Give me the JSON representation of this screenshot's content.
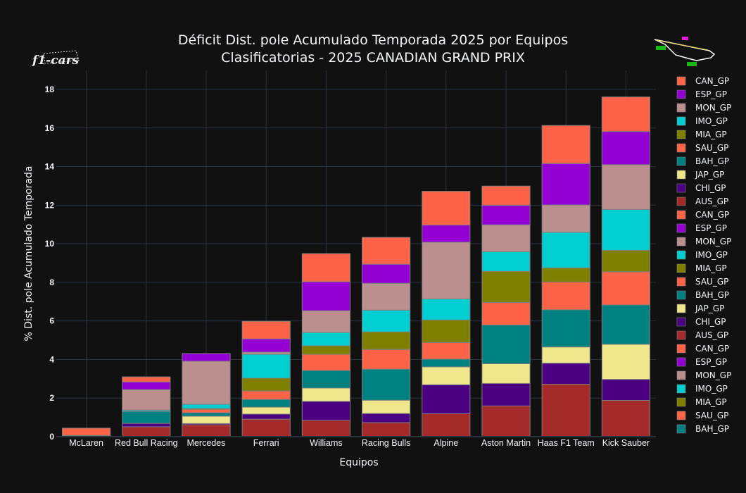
{
  "chart_data": {
    "type": "bar",
    "stacked": true,
    "title": "Déficit Dist. pole Acumulado Temporada 2025 por Equipos",
    "subtitle": "Clasificatorias - 2025 CANADIAN GRAND PRIX",
    "xlabel": "Equipos",
    "ylabel": "% Dist. pole Acumulado Temporada",
    "ylim": [
      0,
      19
    ],
    "yticks": [
      0,
      2,
      4,
      6,
      8,
      10,
      12,
      14,
      16,
      18
    ],
    "grid": true,
    "legend_position": "right",
    "categories": [
      "McLaren",
      "Red Bull Racing",
      "Mercedes",
      "Ferrari",
      "Williams",
      "Racing Bulls",
      "Alpine",
      "Aston Martin",
      "Haas F1 Team",
      "Kick Sauber"
    ],
    "series": [
      {
        "name": "AUS_GP",
        "color": "#a52a2a",
        "values": [
          0.0,
          0.51,
          0.62,
          0.91,
          0.84,
          0.73,
          1.19,
          1.59,
          2.72,
          1.88
        ]
      },
      {
        "name": "CHI_GP",
        "color": "#4b0082",
        "values": [
          0.0,
          0.18,
          0.06,
          0.26,
          0.99,
          0.47,
          1.5,
          1.17,
          1.09,
          1.09
        ]
      },
      {
        "name": "JAP_GP",
        "color": "#f0e68c",
        "values": [
          0.0,
          0.0,
          0.38,
          0.36,
          0.69,
          0.69,
          0.93,
          1.02,
          0.84,
          1.82
        ]
      },
      {
        "name": "BAH_GP",
        "color": "#008080",
        "values": [
          0.0,
          0.62,
          0.18,
          0.4,
          0.91,
          1.61,
          0.4,
          2.01,
          1.93,
          2.04
        ]
      },
      {
        "name": "SAU_GP",
        "color": "#ff6347",
        "values": [
          0.0,
          0.0,
          0.18,
          0.44,
          0.84,
          1.02,
          0.86,
          1.17,
          1.44,
          1.72
        ]
      },
      {
        "name": "MIA_GP",
        "color": "#808000",
        "values": [
          0.06,
          0.0,
          0.04,
          0.66,
          0.44,
          0.91,
          1.17,
          1.61,
          0.73,
          1.11
        ]
      },
      {
        "name": "IMO_GP",
        "color": "#00ced1",
        "values": [
          0.0,
          0.07,
          0.22,
          1.24,
          0.69,
          1.13,
          1.09,
          1.02,
          1.84,
          2.12
        ]
      },
      {
        "name": "MON_GP",
        "color": "#bc8f8f",
        "values": [
          0.0,
          1.06,
          2.23,
          0.11,
          1.13,
          1.39,
          2.94,
          1.39,
          1.42,
          2.32
        ]
      },
      {
        "name": "ESP_GP",
        "color": "#9400d3",
        "values": [
          0.0,
          0.4,
          0.4,
          0.69,
          1.5,
          0.99,
          0.89,
          1.02,
          2.15,
          1.72
        ]
      },
      {
        "name": "CAN_GP",
        "color": "#ff6347",
        "values": [
          0.38,
          0.26,
          0.0,
          0.91,
          1.46,
          1.39,
          1.75,
          0.99,
          1.97,
          1.79
        ]
      }
    ],
    "legend_entries": [
      {
        "label": "CAN_GP",
        "color": "#ff6347"
      },
      {
        "label": "ESP_GP",
        "color": "#9400d3"
      },
      {
        "label": "MON_GP",
        "color": "#bc8f8f"
      },
      {
        "label": "IMO_GP",
        "color": "#00ced1"
      },
      {
        "label": "MIA_GP",
        "color": "#808000"
      },
      {
        "label": "SAU_GP",
        "color": "#ff6347"
      },
      {
        "label": "BAH_GP",
        "color": "#008080"
      },
      {
        "label": "JAP_GP",
        "color": "#f0e68c"
      },
      {
        "label": "CHI_GP",
        "color": "#4b0082"
      },
      {
        "label": "AUS_GP",
        "color": "#a52a2a"
      },
      {
        "label": "CAN_GP",
        "color": "#ff6347"
      },
      {
        "label": "ESP_GP",
        "color": "#9400d3"
      },
      {
        "label": "MON_GP",
        "color": "#bc8f8f"
      },
      {
        "label": "IMO_GP",
        "color": "#00ced1"
      },
      {
        "label": "MIA_GP",
        "color": "#808000"
      },
      {
        "label": "SAU_GP",
        "color": "#ff6347"
      },
      {
        "label": "BAH_GP",
        "color": "#008080"
      },
      {
        "label": "JAP_GP",
        "color": "#f0e68c"
      },
      {
        "label": "CHI_GP",
        "color": "#4b0082"
      },
      {
        "label": "AUS_GP",
        "color": "#a52a2a"
      },
      {
        "label": "CAN_GP",
        "color": "#ff6347"
      },
      {
        "label": "ESP_GP",
        "color": "#9400d3"
      },
      {
        "label": "MON_GP",
        "color": "#bc8f8f"
      },
      {
        "label": "IMO_GP",
        "color": "#00ced1"
      },
      {
        "label": "MIA_GP",
        "color": "#808000"
      },
      {
        "label": "SAU_GP",
        "color": "#ff6347"
      },
      {
        "label": "BAH_GP",
        "color": "#008080"
      }
    ]
  },
  "logo": {
    "text": "f1-cars"
  },
  "track_map": {
    "label": "circuit-map"
  },
  "colors": {
    "background": "#111111",
    "grid": "#283442",
    "text": "#f2f5fa",
    "bar_outline": "#7f7f7f"
  }
}
